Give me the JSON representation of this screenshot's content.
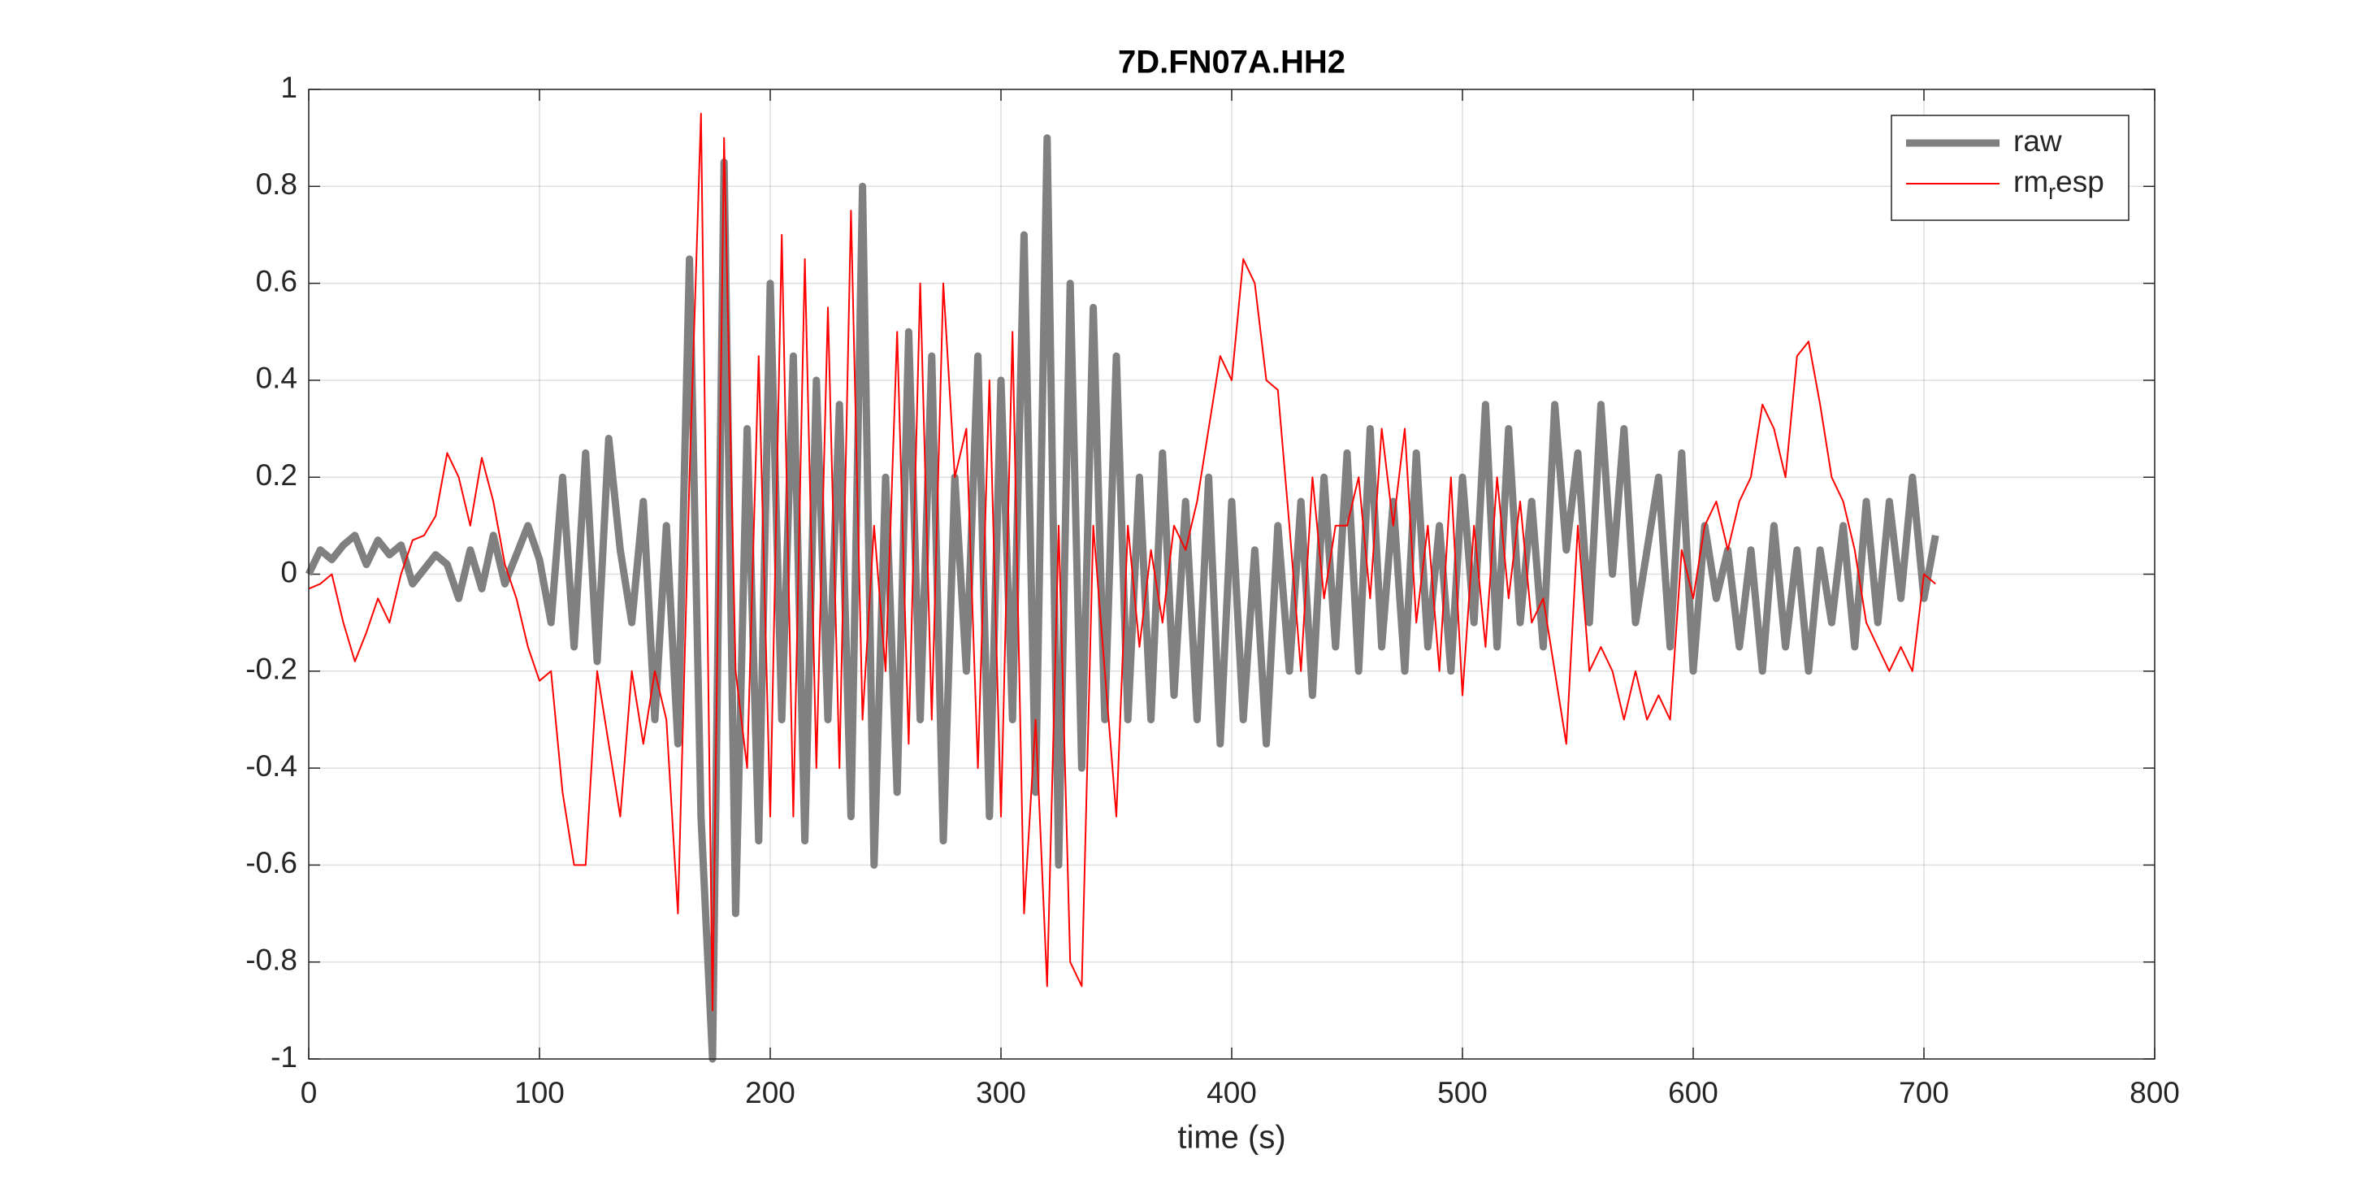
{
  "chart_data": {
    "type": "line",
    "title": "7D.FN07A.HH2",
    "x_label": "time (s)",
    "x": [
      0,
      5,
      10,
      15,
      20,
      25,
      30,
      35,
      40,
      45,
      50,
      55,
      60,
      65,
      70,
      75,
      80,
      85,
      90,
      95,
      100,
      105,
      110,
      115,
      120,
      125,
      130,
      135,
      140,
      145,
      150,
      155,
      160,
      165,
      170,
      175,
      180,
      185,
      190,
      195,
      200,
      205,
      210,
      215,
      220,
      225,
      230,
      235,
      240,
      245,
      250,
      255,
      260,
      265,
      270,
      275,
      280,
      285,
      290,
      295,
      300,
      305,
      310,
      315,
      320,
      325,
      330,
      335,
      340,
      345,
      350,
      355,
      360,
      365,
      370,
      375,
      380,
      385,
      390,
      395,
      400,
      405,
      410,
      415,
      420,
      425,
      430,
      435,
      440,
      445,
      450,
      455,
      460,
      465,
      470,
      475,
      480,
      485,
      490,
      495,
      500,
      505,
      510,
      515,
      520,
      525,
      530,
      535,
      540,
      545,
      550,
      555,
      560,
      565,
      570,
      575,
      580,
      585,
      590,
      595,
      600,
      605,
      610,
      615,
      620,
      625,
      630,
      635,
      640,
      645,
      650,
      655,
      660,
      665,
      670,
      675,
      680,
      685,
      690,
      695,
      700,
      705
    ],
    "series": [
      {
        "name": "raw",
        "color": "#808080",
        "values": [
          0,
          0.05,
          0.03,
          0.06,
          0.08,
          0.02,
          0.07,
          0.04,
          0.06,
          -0.02,
          0.01,
          0.04,
          0.02,
          -0.05,
          0.05,
          -0.03,
          0.08,
          -0.02,
          0.04,
          0.1,
          0.03,
          -0.1,
          0.2,
          -0.15,
          0.25,
          -0.18,
          0.28,
          0.05,
          -0.1,
          0.15,
          -0.3,
          0.1,
          -0.35,
          0.65,
          -0.5,
          -1,
          0.85,
          -0.7,
          0.3,
          -0.55,
          0.6,
          -0.3,
          0.45,
          -0.55,
          0.4,
          -0.3,
          0.35,
          -0.5,
          0.8,
          -0.6,
          0.2,
          -0.45,
          0.5,
          -0.3,
          0.45,
          -0.55,
          0.2,
          -0.2,
          0.45,
          -0.5,
          0.4,
          -0.3,
          0.7,
          -0.45,
          0.9,
          -0.6,
          0.6,
          -0.4,
          0.55,
          -0.3,
          0.45,
          -0.3,
          0.2,
          -0.3,
          0.25,
          -0.25,
          0.15,
          -0.3,
          0.2,
          -0.35,
          0.15,
          -0.3,
          0.05,
          -0.35,
          0.1,
          -0.2,
          0.15,
          -0.25,
          0.2,
          -0.15,
          0.25,
          -0.2,
          0.3,
          -0.15,
          0.15,
          -0.2,
          0.25,
          -0.15,
          0.1,
          -0.2,
          0.2,
          -0.1,
          0.35,
          -0.15,
          0.3,
          -0.1,
          0.15,
          -0.15,
          0.35,
          0.05,
          0.25,
          -0.1,
          0.35,
          0,
          0.3,
          -0.1,
          0.05,
          0.2,
          -0.15,
          0.25,
          -0.2,
          0.1,
          -0.05,
          0.05,
          -0.15,
          0.05,
          -0.2,
          0.1,
          -0.15,
          0.05,
          -0.2,
          0.05,
          -0.1,
          0.1,
          -0.15,
          0.15,
          -0.1,
          0.15,
          -0.05,
          0.2,
          -0.05,
          0.08
        ]
      },
      {
        "name": "rm_resp",
        "color": "#ff0000",
        "values": [
          -0.03,
          -0.02,
          0,
          -0.1,
          -0.18,
          -0.12,
          -0.05,
          -0.1,
          0,
          0.07,
          0.08,
          0.12,
          0.25,
          0.2,
          0.1,
          0.24,
          0.15,
          0.02,
          -0.05,
          -0.15,
          -0.22,
          -0.2,
          -0.45,
          -0.6,
          -0.6,
          -0.2,
          -0.35,
          -0.5,
          -0.2,
          -0.35,
          -0.2,
          -0.3,
          -0.7,
          0.2,
          0.95,
          -0.9,
          0.9,
          -0.2,
          -0.4,
          0.45,
          -0.5,
          0.7,
          -0.5,
          0.65,
          -0.4,
          0.55,
          -0.4,
          0.75,
          -0.3,
          0.1,
          -0.2,
          0.5,
          -0.35,
          0.6,
          -0.3,
          0.6,
          0.2,
          0.3,
          -0.4,
          0.4,
          -0.5,
          0.5,
          -0.7,
          -0.3,
          -0.85,
          0.1,
          -0.8,
          -0.85,
          0.1,
          -0.2,
          -0.5,
          0.1,
          -0.15,
          0.05,
          -0.1,
          0.1,
          0.05,
          0.15,
          0.3,
          0.45,
          0.4,
          0.65,
          0.6,
          0.4,
          0.38,
          0.1,
          -0.2,
          0.2,
          -0.05,
          0.1,
          0.1,
          0.2,
          -0.05,
          0.3,
          0.1,
          0.3,
          -0.1,
          0.1,
          -0.2,
          0.2,
          -0.25,
          0.1,
          -0.15,
          0.2,
          -0.05,
          0.15,
          -0.1,
          -0.05,
          -0.2,
          -0.35,
          0.1,
          -0.2,
          -0.15,
          -0.2,
          -0.3,
          -0.2,
          -0.3,
          -0.25,
          -0.3,
          0.05,
          -0.05,
          0.1,
          0.15,
          0.05,
          0.15,
          0.2,
          0.35,
          0.3,
          0.2,
          0.45,
          0.48,
          0.35,
          0.2,
          0.15,
          0.05,
          -0.1,
          -0.15,
          -0.2,
          -0.15,
          -0.2,
          0,
          -0.02
        ]
      }
    ],
    "xlim": [
      0,
      800
    ],
    "xticks": [
      0,
      100,
      200,
      300,
      400,
      500,
      600,
      700,
      800
    ],
    "ylim": [
      -1,
      1
    ],
    "yticks": [
      -1,
      -0.8,
      -0.6,
      -0.4,
      -0.2,
      0,
      0.2,
      0.4,
      0.6,
      0.8,
      1
    ],
    "grid": true,
    "legend": "northeast"
  }
}
